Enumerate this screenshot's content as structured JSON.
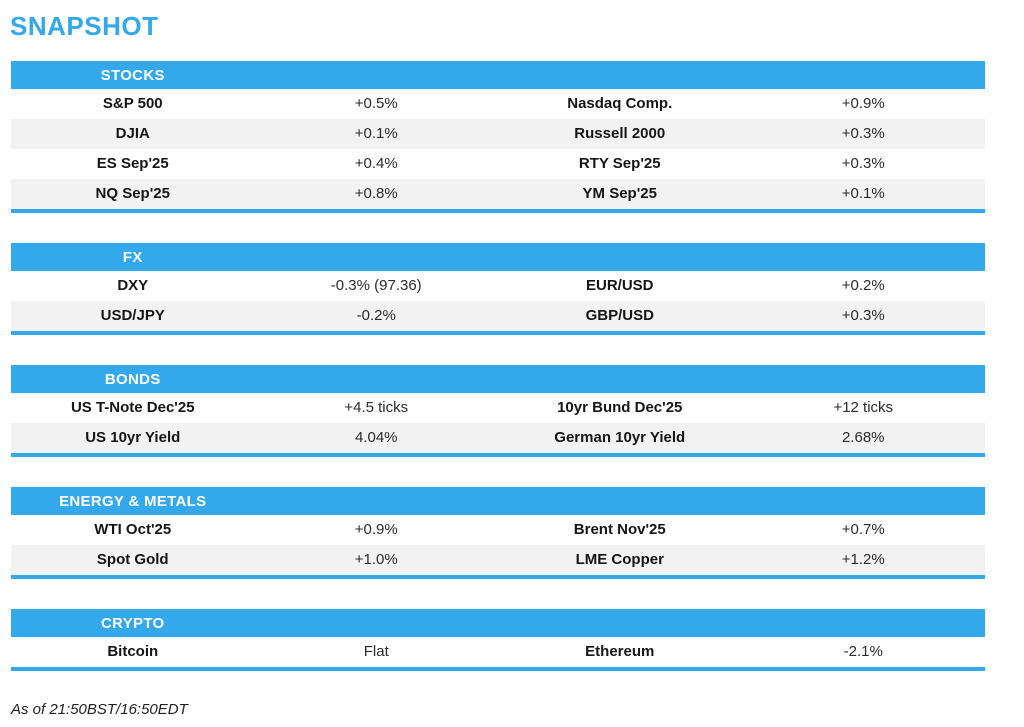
{
  "title": "SNAPSHOT",
  "footer": "As of 21:50BST/16:50EDT",
  "colors": {
    "accent": "#33A8EA",
    "row_alt": "#F2F2F2",
    "text": "#1E1E1E",
    "header_text": "#FFFFFF"
  },
  "sections": [
    {
      "id": "stocks",
      "header": "STOCKS",
      "rows": [
        [
          "S&P 500",
          "+0.5%",
          "Nasdaq Comp.",
          "+0.9%"
        ],
        [
          "DJIA",
          "+0.1%",
          "Russell 2000",
          "+0.3%"
        ],
        [
          "ES Sep'25",
          "+0.4%",
          "RTY Sep'25",
          "+0.3%"
        ],
        [
          "NQ Sep'25",
          "+0.8%",
          "YM Sep'25",
          "+0.1%"
        ]
      ]
    },
    {
      "id": "fx",
      "header": "FX",
      "rows": [
        [
          "DXY",
          "-0.3% (97.36)",
          "EUR/USD",
          "+0.2%"
        ],
        [
          "USD/JPY",
          "-0.2%",
          "GBP/USD",
          "+0.3%"
        ]
      ]
    },
    {
      "id": "bonds",
      "header": "BONDS",
      "rows": [
        [
          "US T-Note Dec'25",
          "+4.5 ticks",
          "10yr Bund Dec'25",
          "+12 ticks"
        ],
        [
          "US 10yr Yield",
          "4.04%",
          "German 10yr Yield",
          "2.68%"
        ]
      ]
    },
    {
      "id": "energy-metals",
      "header": "ENERGY & METALS",
      "rows": [
        [
          "WTI Oct'25",
          "+0.9%",
          "Brent Nov'25",
          "+0.7%"
        ],
        [
          "Spot Gold",
          "+1.0%",
          "LME Copper",
          "+1.2%"
        ]
      ]
    },
    {
      "id": "crypto",
      "header": "CRYPTO",
      "rows": [
        [
          "Bitcoin",
          "Flat",
          "Ethereum",
          "-2.1%"
        ]
      ]
    }
  ]
}
